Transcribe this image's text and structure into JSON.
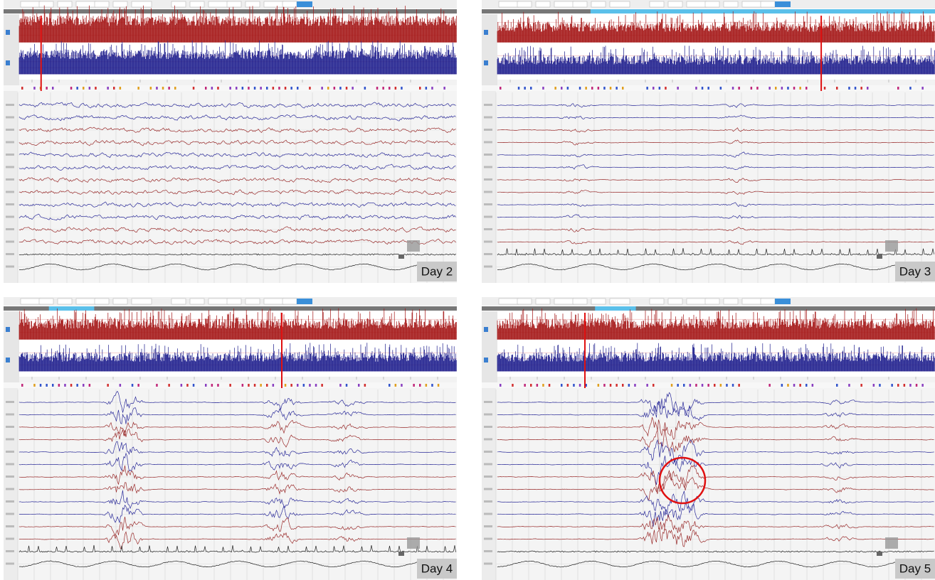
{
  "panels": [
    {
      "label": "Day 2"
    },
    {
      "label": "Day 3"
    },
    {
      "label": "Day 4"
    },
    {
      "label": "Day 5"
    }
  ]
}
